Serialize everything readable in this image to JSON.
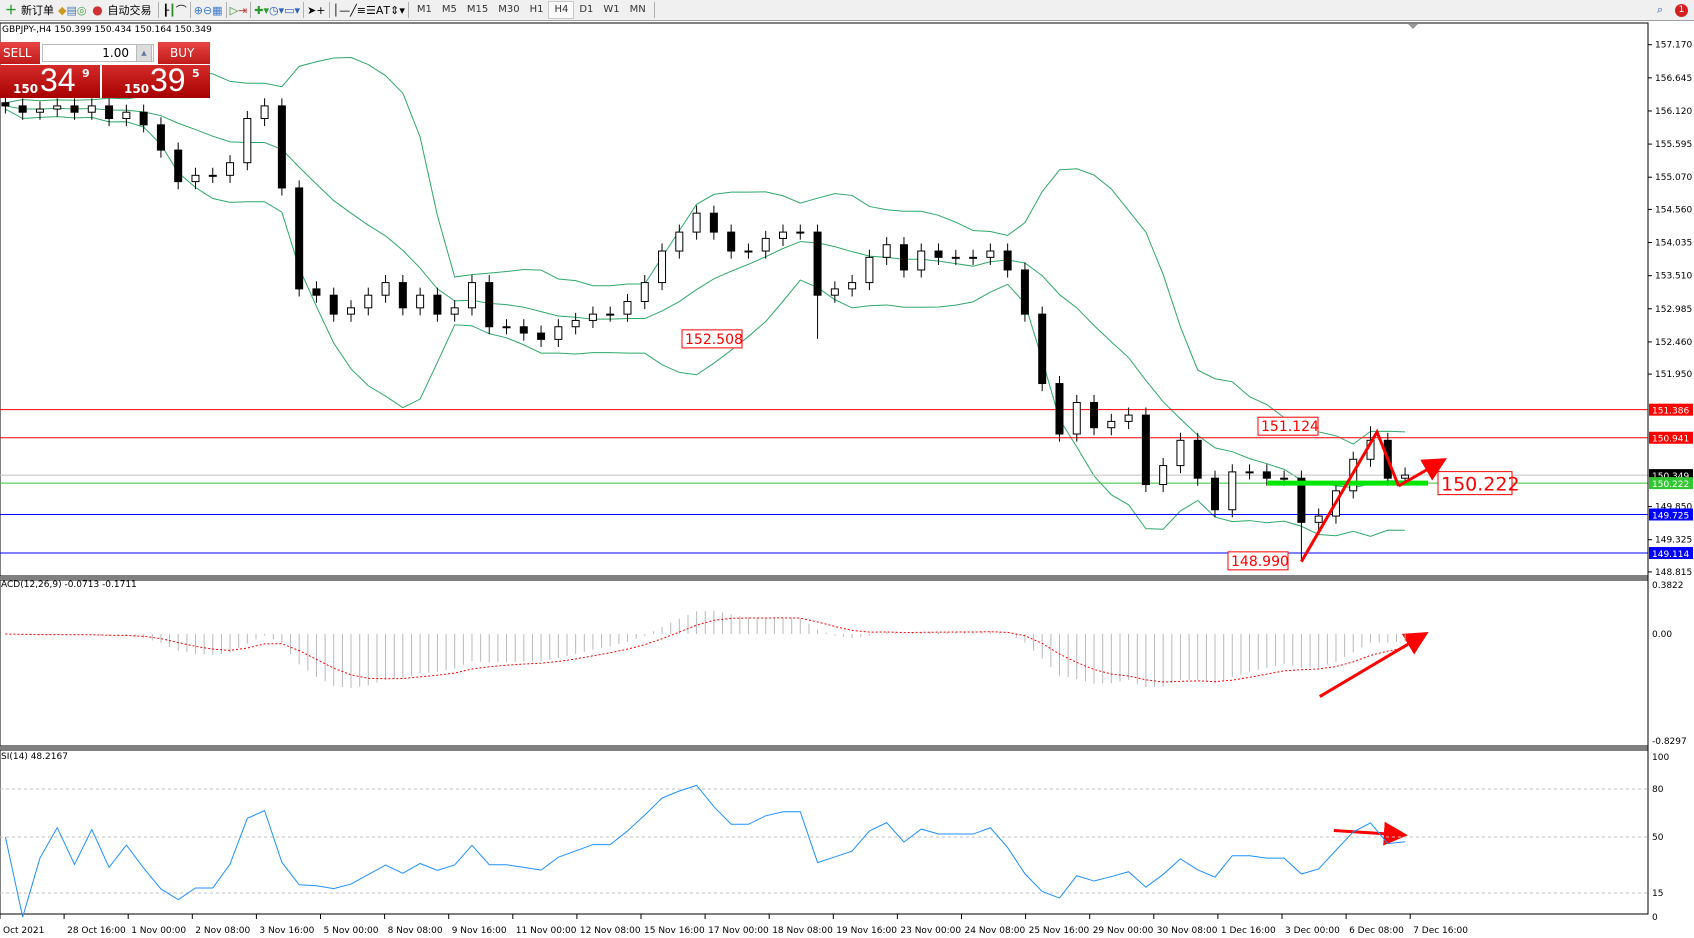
{
  "toolbar": {
    "new_order": "新订单",
    "auto_trading": "自动交易",
    "icons": [
      "new-order-icon",
      "metaeditor-icon",
      "market-watch-icon",
      "signals-icon",
      "autotrading-icon",
      "bar-chart-icon",
      "candlestick-icon",
      "line-chart-icon",
      "zoom-in-icon",
      "zoom-out-icon",
      "tile-windows-icon",
      "autoscroll-icon",
      "chart-shift-icon",
      "indicators-icon",
      "periods-icon",
      "templates-icon",
      "cursor-icon",
      "crosshair-icon",
      "vertical-line-icon",
      "horizontal-line-icon",
      "trendline-icon",
      "equidistant-channel-icon",
      "fibonacci-icon",
      "text-icon",
      "text-label-icon",
      "arrows-icon"
    ],
    "text_tool": "A",
    "timeframes": [
      "M1",
      "M5",
      "M15",
      "M30",
      "H1",
      "H4",
      "D1",
      "W1",
      "MN"
    ],
    "active_timeframe": "H4",
    "notification_count": "1"
  },
  "symbol_info": "GBPJPY-,H4  150.399 150.434 150.164 150.349",
  "trade_panel": {
    "sell_label": "SELL",
    "buy_label": "BUY",
    "lot": "1.00",
    "sell_price": {
      "prefix": "150",
      "big": "34",
      "sup": "9"
    },
    "buy_price": {
      "prefix": "150",
      "big": "39",
      "sup": "5"
    }
  },
  "price_axis": [
    "157.170",
    "156.645",
    "156.120",
    "155.595",
    "155.070",
    "154.560",
    "154.035",
    "153.510",
    "152.985",
    "152.460",
    "151.950",
    "149.850",
    "149.325",
    "148.815"
  ],
  "levels": [
    {
      "price": 151.386,
      "label": "151.386",
      "color": "#ff0000"
    },
    {
      "price": 150.941,
      "label": "150.941",
      "color": "#ff0000"
    },
    {
      "price": 150.349,
      "label": "150.349",
      "color": "#000000"
    },
    {
      "price": 150.222,
      "label": "150.222",
      "color": "#32c832"
    },
    {
      "price": 149.725,
      "label": "149.725",
      "color": "#0000ff"
    },
    {
      "price": 149.114,
      "label": "149.114",
      "color": "#0000ff"
    }
  ],
  "annotations": [
    {
      "text": "152.508",
      "price": 152.508
    },
    {
      "text": "151.124",
      "price": 151.124
    },
    {
      "text": "148.990",
      "price": 148.99
    },
    {
      "text": "150.222",
      "price": 150.222
    }
  ],
  "macd": {
    "label": "ACD(12,26,9) -0.0713 -0.1711",
    "axis": [
      "0.3822",
      "0.00",
      "-0.8297"
    ]
  },
  "rsi": {
    "label": "SI(14) 48.2167",
    "axis": [
      "100",
      "80",
      "50",
      "15",
      "0"
    ]
  },
  "time_axis": [
    "Oct 2021",
    "28 Oct 16:00",
    "1 Nov 00:00",
    "2 Nov 08:00",
    "3 Nov 16:00",
    "5 Nov 00:00",
    "8 Nov 08:00",
    "9 Nov 16:00",
    "11 Nov 00:00",
    "12 Nov 08:00",
    "15 Nov 16:00",
    "17 Nov 00:00",
    "18 Nov 08:00",
    "19 Nov 16:00",
    "23 Nov 00:00",
    "24 Nov 08:00",
    "25 Nov 16:00",
    "29 Nov 00:00",
    "30 Nov 08:00",
    "1 Dec 16:00",
    "3 Dec 00:00",
    "6 Dec 08:00",
    "7 Dec 16:00"
  ],
  "chart_data": {
    "type": "candlestick",
    "symbol": "GBPJPY-",
    "timeframe": "H4",
    "ylim": [
      148.815,
      157.17
    ],
    "closes": [
      156.2,
      156.1,
      156.15,
      156.2,
      156.1,
      156.2,
      156.0,
      156.1,
      155.9,
      155.5,
      155.0,
      155.1,
      155.1,
      155.3,
      156.0,
      156.2,
      154.9,
      153.3,
      153.2,
      152.9,
      153.0,
      153.2,
      153.4,
      153.0,
      153.2,
      152.9,
      153.0,
      153.4,
      152.7,
      152.7,
      152.6,
      152.5,
      152.7,
      152.8,
      152.9,
      152.9,
      153.1,
      153.4,
      153.9,
      154.2,
      154.5,
      154.2,
      153.9,
      153.9,
      154.1,
      154.2,
      154.2,
      153.2,
      153.3,
      153.4,
      153.8,
      154.0,
      153.6,
      153.9,
      153.8,
      153.8,
      153.8,
      153.9,
      153.6,
      152.9,
      151.8,
      151.0,
      151.5,
      151.1,
      151.2,
      151.3,
      150.2,
      150.5,
      150.9,
      150.3,
      149.8,
      150.4,
      150.4,
      150.3,
      150.3,
      149.6,
      149.7,
      150.1,
      150.6,
      150.9,
      150.3,
      150.349
    ],
    "marked_extremes": {
      "low_1": 152.508,
      "high": 151.124,
      "low_2": 148.99
    },
    "rsi_levels": [
      80,
      50,
      15
    ],
    "colors": {
      "bull": "#ffffff",
      "bear": "#000000",
      "bands": "#2ea86a",
      "macd_hist": "#b8b8b8",
      "macd_signal": "#ff0000",
      "rsi": "#1e90ff",
      "arrows": "#ff0000",
      "support": "#00e600"
    }
  }
}
